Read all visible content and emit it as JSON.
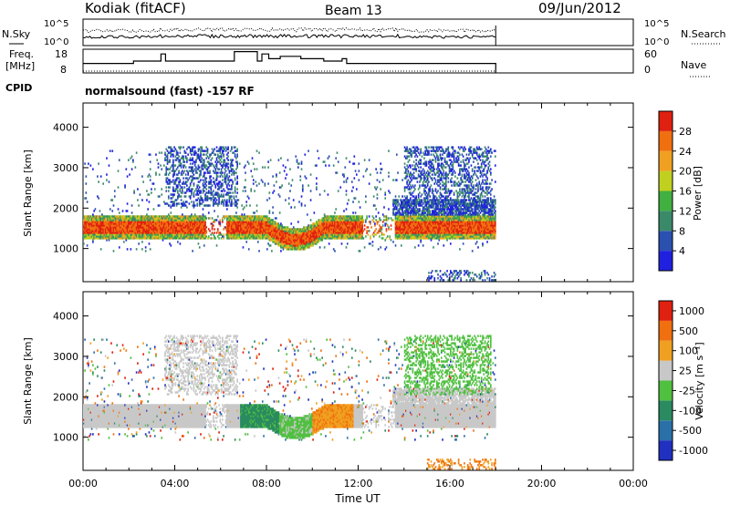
{
  "header": {
    "station": "Kodiak (fitACF)",
    "beam": "Beam 13",
    "date": "09/Jun/2012"
  },
  "summary_panels": {
    "nsky_label": "N.Sky",
    "nsky_ticks": [
      "10^5",
      "10^0"
    ],
    "nsearch_label": "N.Search",
    "nsearch_ticks": [
      "10^5",
      "10^0"
    ],
    "freq_label": "Freq.",
    "freq_unit": "[MHz]",
    "freq_ticks": [
      "18",
      "8"
    ],
    "nave_label": "Nave",
    "nave_ticks": [
      "60",
      "0"
    ],
    "cpid_label": "CPID",
    "cpid_text": "normalsound (fast) -157 RF"
  },
  "chart_data": [
    {
      "type": "heatmap",
      "name": "power",
      "ylabel": "Slant Range [km]",
      "xlabel": "Time UT",
      "ylim": [
        180,
        4600
      ],
      "xlim": [
        0,
        24
      ],
      "yticks": [
        "4000",
        "3000",
        "2000",
        "1000"
      ],
      "xticks": [
        "00:00",
        "04:00",
        "08:00",
        "12:00",
        "16:00",
        "20:00",
        "00:00"
      ],
      "colorbar_label": "Power [dB]",
      "colorbar_ticks": [
        "28",
        "24",
        "20",
        "16",
        "12",
        "8",
        "4"
      ],
      "colors": [
        "#2020e0",
        "#2a50b0",
        "#3a8a6a",
        "#40b040",
        "#c0d020",
        "#f0a020",
        "#f07010",
        "#e02010"
      ],
      "data_end_hour": 18
    },
    {
      "type": "heatmap",
      "name": "velocity",
      "ylabel": "Slant Range [km]",
      "xlabel": "Time UT",
      "ylim": [
        180,
        4600
      ],
      "xlim": [
        0,
        24
      ],
      "yticks": [
        "4000",
        "3000",
        "2000",
        "1000"
      ],
      "xticks": [
        "00:00",
        "04:00",
        "08:00",
        "12:00",
        "16:00",
        "20:00",
        "00:00"
      ],
      "colorbar_label": "Velocity [m s⁻¹]",
      "colorbar_ticks": [
        "1000",
        "500",
        "100",
        "25",
        "-25",
        "-100",
        "-500",
        "-1000"
      ],
      "colors": [
        "#2030c0",
        "#2a70a8",
        "#2a8a60",
        "#50c040",
        "#c8c8c8",
        "#f0a020",
        "#f07010",
        "#e02010"
      ],
      "data_end_hour": 18
    }
  ],
  "axis_title": "Time UT"
}
